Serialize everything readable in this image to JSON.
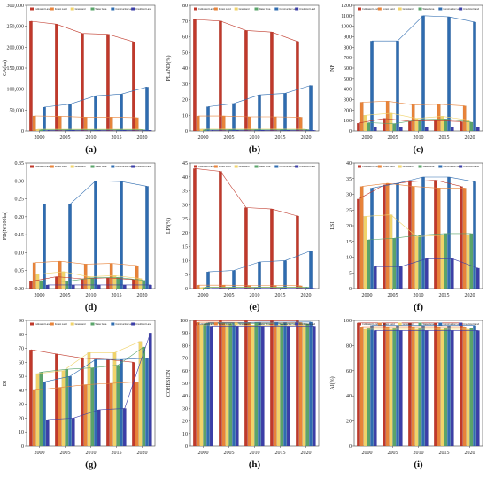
{
  "colors": [
    "#c0392b",
    "#e8833a",
    "#f0d36a",
    "#5aa46a",
    "#2f6cb0",
    "#3b3ea8"
  ],
  "legend_labels": [
    "Cultivated Land",
    "Forest Land",
    "Grassland",
    "Water Area",
    "Construction Land",
    "Unutilized Land"
  ],
  "chart_data": [
    {
      "type": "bar",
      "panel": "(a)",
      "ylabel": "CA(ha)",
      "categories": [
        "2000",
        "2005",
        "2010",
        "2015",
        "2020"
      ],
      "ylim": [
        0,
        300000
      ],
      "yticks": [
        "0",
        "50,000",
        "100,000",
        "150,000",
        "200,000",
        "250,000",
        "300,000"
      ],
      "series": [
        {
          "values": [
            262000,
            255000,
            233000,
            231000,
            213000
          ]
        },
        {
          "values": [
            36000,
            35000,
            33000,
            33000,
            32000
          ]
        },
        {
          "values": [
            4000,
            4000,
            4000,
            4000,
            4000
          ]
        },
        {
          "values": [
            3000,
            3000,
            3000,
            3000,
            3000
          ]
        },
        {
          "values": [
            57000,
            64000,
            84000,
            88000,
            105000
          ]
        },
        {
          "values": [
            1500,
            1500,
            1500,
            1500,
            1500
          ]
        }
      ]
    },
    {
      "type": "bar",
      "panel": "(b)",
      "ylabel": "PLAND(%)",
      "categories": [
        "2000",
        "2005",
        "2010",
        "2015",
        "2020"
      ],
      "ylim": [
        0,
        80
      ],
      "yticks": [
        "0",
        "10",
        "20",
        "30",
        "40",
        "50",
        "60",
        "70",
        "80"
      ],
      "series": [
        {
          "values": [
            71,
            70,
            64,
            63,
            57
          ]
        },
        {
          "values": [
            9.5,
            9.5,
            9,
            9,
            8.8
          ]
        },
        {
          "values": [
            1.2,
            1.2,
            1.2,
            1.2,
            1.2
          ]
        },
        {
          "values": [
            0.9,
            0.9,
            0.9,
            0.9,
            0.9
          ]
        },
        {
          "values": [
            15.5,
            17.5,
            23,
            24,
            29
          ]
        },
        {
          "values": [
            0.4,
            0.4,
            0.4,
            0.4,
            0.4
          ]
        }
      ]
    },
    {
      "type": "bar",
      "panel": "(c)",
      "ylabel": "NP",
      "categories": [
        "2000",
        "2005",
        "2010",
        "2015",
        "2020"
      ],
      "ylim": [
        0,
        1200
      ],
      "yticks": [
        "0",
        "100",
        "200",
        "300",
        "400",
        "500",
        "600",
        "700",
        "800",
        "900",
        "1000",
        "1100",
        "1200"
      ],
      "series": [
        {
          "values": [
            75,
            120,
            95,
            100,
            90
          ]
        },
        {
          "values": [
            275,
            285,
            250,
            255,
            240
          ]
        },
        {
          "values": [
            150,
            170,
            120,
            140,
            105
          ]
        },
        {
          "values": [
            80,
            70,
            110,
            115,
            85
          ]
        },
        {
          "values": [
            860,
            860,
            1100,
            1090,
            1040
          ]
        },
        {
          "values": [
            40,
            40,
            40,
            40,
            40
          ]
        }
      ]
    },
    {
      "type": "bar",
      "panel": "(d)",
      "ylabel": "PD(N/100ha)",
      "categories": [
        "2000",
        "2005",
        "2010",
        "2015",
        "2020"
      ],
      "ylim": [
        0,
        0.35
      ],
      "yticks": [
        "0.00",
        "0.05",
        "0.10",
        "0.15",
        "0.20",
        "0.25",
        "0.30",
        "0.35"
      ],
      "series": [
        {
          "values": [
            0.02,
            0.033,
            0.027,
            0.03,
            0.025
          ]
        },
        {
          "values": [
            0.072,
            0.076,
            0.068,
            0.07,
            0.064
          ]
        },
        {
          "values": [
            0.04,
            0.047,
            0.033,
            0.036,
            0.028
          ]
        },
        {
          "values": [
            0.022,
            0.02,
            0.03,
            0.031,
            0.023
          ]
        },
        {
          "values": [
            0.235,
            0.235,
            0.3,
            0.298,
            0.285
          ]
        },
        {
          "values": [
            0.01,
            0.01,
            0.01,
            0.01,
            0.01
          ]
        }
      ]
    },
    {
      "type": "bar",
      "panel": "(e)",
      "ylabel": "LPI(%)",
      "categories": [
        "2000",
        "2005",
        "2010",
        "2015",
        "2020"
      ],
      "ylim": [
        0,
        45
      ],
      "yticks": [
        "0",
        "5",
        "10",
        "15",
        "20",
        "25",
        "30",
        "35",
        "40",
        "45"
      ],
      "series": [
        {
          "values": [
            43,
            42,
            29,
            28.5,
            26
          ]
        },
        {
          "values": [
            1.2,
            1.2,
            1.1,
            1.1,
            1.0
          ]
        },
        {
          "values": [
            0.4,
            0.4,
            0.4,
            0.4,
            0.4
          ]
        },
        {
          "values": [
            0.5,
            0.5,
            0.5,
            0.5,
            0.5
          ]
        },
        {
          "values": [
            6,
            6.5,
            9.5,
            10,
            13.5
          ]
        },
        {
          "values": [
            0.1,
            0.1,
            0.1,
            0.1,
            0.1
          ]
        }
      ]
    },
    {
      "type": "bar",
      "panel": "(f)",
      "ylabel": "LSI",
      "categories": [
        "2000",
        "2005",
        "2010",
        "2015",
        "2020"
      ],
      "ylim": [
        0,
        40
      ],
      "yticks": [
        "0",
        "5",
        "10",
        "15",
        "20",
        "25",
        "30",
        "35",
        "40"
      ],
      "series": [
        {
          "values": [
            28.5,
            33,
            34,
            34.5,
            32.5
          ]
        },
        {
          "values": [
            32.5,
            33.5,
            32.5,
            32,
            32
          ]
        },
        {
          "values": [
            23,
            23.5,
            16.5,
            17,
            17
          ]
        },
        {
          "values": [
            15.5,
            16,
            17,
            17.5,
            17.5
          ]
        },
        {
          "values": [
            32,
            33.5,
            35.5,
            35.5,
            34
          ]
        },
        {
          "values": [
            7,
            7,
            9.5,
            9.5,
            6.5
          ]
        }
      ]
    },
    {
      "type": "bar",
      "panel": "(g)",
      "ylabel": "DI",
      "categories": [
        "2000",
        "2005",
        "2010",
        "2015",
        "2020"
      ],
      "ylim": [
        0,
        90
      ],
      "yticks": [
        "0",
        "10",
        "20",
        "30",
        "40",
        "50",
        "60",
        "70",
        "80",
        "90"
      ],
      "series": [
        {
          "values": [
            69,
            66,
            63,
            62,
            60
          ]
        },
        {
          "values": [
            40,
            42,
            44,
            45,
            46
          ]
        },
        {
          "values": [
            52,
            54,
            67,
            67,
            75
          ]
        },
        {
          "values": [
            53,
            55,
            56,
            58,
            71
          ]
        },
        {
          "values": [
            46,
            50,
            62,
            62,
            63
          ]
        },
        {
          "values": [
            19,
            20,
            26,
            27,
            81
          ]
        }
      ]
    },
    {
      "type": "bar",
      "panel": "(h)",
      "ylabel": "COHESION",
      "categories": [
        "2000",
        "2005",
        "2010",
        "2015",
        "2020"
      ],
      "ylim": [
        0,
        100
      ],
      "yticks": [
        "0",
        "10",
        "20",
        "30",
        "40",
        "50",
        "60",
        "70",
        "80",
        "90",
        "100"
      ],
      "series": [
        {
          "values": [
            99.8,
            99.8,
            99.7,
            99.7,
            99.7
          ]
        },
        {
          "values": [
            98.5,
            98.5,
            98.4,
            98.4,
            98.3
          ]
        },
        {
          "values": [
            96.5,
            96.5,
            96.3,
            96.3,
            96.2
          ]
        },
        {
          "values": [
            97.5,
            97.5,
            97.4,
            97.4,
            97.3
          ]
        },
        {
          "values": [
            98,
            98.1,
            98.5,
            98.5,
            98.7
          ]
        },
        {
          "values": [
            95.5,
            95.5,
            95.5,
            95.5,
            95.5
          ]
        }
      ]
    },
    {
      "type": "bar",
      "panel": "(i)",
      "ylabel": "AI(%)",
      "categories": [
        "2000",
        "2005",
        "2010",
        "2015",
        "2020"
      ],
      "ylim": [
        0,
        100
      ],
      "yticks": [
        "0",
        "20",
        "40",
        "60",
        "80",
        "100"
      ],
      "series": [
        {
          "values": [
            98,
            98,
            98,
            98,
            98
          ]
        },
        {
          "values": [
            95,
            95,
            95,
            95,
            95
          ]
        },
        {
          "values": [
            93,
            93,
            93,
            93,
            93
          ]
        },
        {
          "values": [
            94,
            94,
            94,
            94,
            94
          ]
        },
        {
          "values": [
            96,
            96,
            96,
            96,
            96
          ]
        },
        {
          "values": [
            92,
            92,
            92,
            92,
            92
          ]
        }
      ]
    }
  ]
}
